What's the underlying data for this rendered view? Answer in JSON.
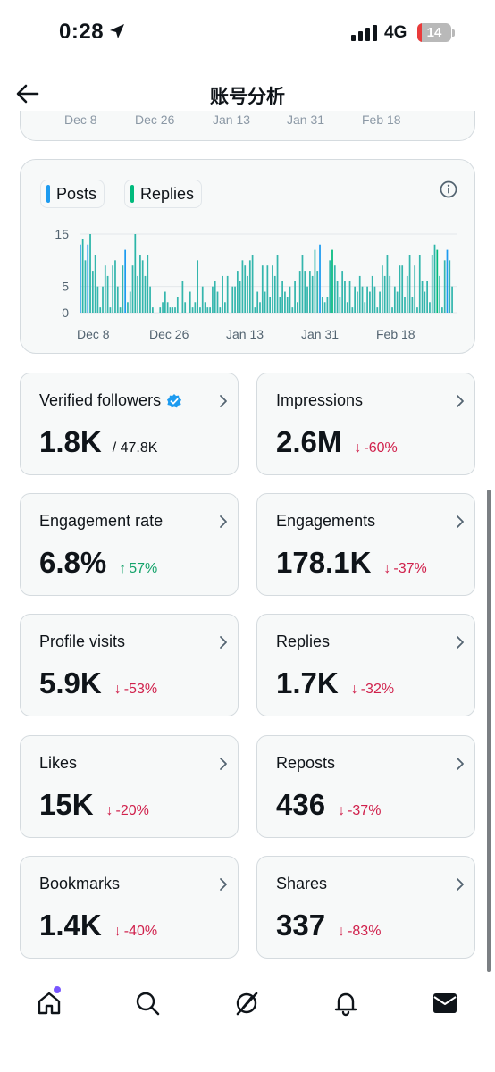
{
  "status_bar": {
    "time": "0:28",
    "network": "4G",
    "battery": "14",
    "battery_level": 0.14,
    "battery_color": "#ea3b3b"
  },
  "header": {
    "title": "账号分析"
  },
  "top_card": {
    "ticks": [
      "Dec 8",
      "Dec 26",
      "Jan 13",
      "Jan 31",
      "Feb 18"
    ]
  },
  "chart": {
    "legend": [
      {
        "label": "Posts",
        "color": "#1d9bf0"
      },
      {
        "label": "Replies",
        "color": "#00ba7c"
      }
    ],
    "y_ticks": [
      "15",
      "5",
      "0"
    ],
    "x_ticks": [
      "Dec 8",
      "Dec 26",
      "Jan 13",
      "Jan 31",
      "Feb 18"
    ]
  },
  "chart_data": {
    "type": "bar",
    "x_tick_labels": [
      "Dec 8",
      "Dec 26",
      "Jan 13",
      "Jan 31",
      "Feb 18"
    ],
    "y_tick_labels": [
      "15",
      "5",
      "0"
    ],
    "ylim": [
      0,
      16
    ],
    "grid": true,
    "legend_position": "top-left",
    "series": [
      {
        "name": "Posts",
        "color": "#1d9bf0"
      },
      {
        "name": "Replies",
        "color": "#00ba7c"
      }
    ],
    "values": [
      13,
      14,
      10,
      13,
      15,
      8,
      11,
      5,
      1,
      5,
      9,
      7,
      1,
      9,
      10,
      5,
      1,
      9,
      12,
      2,
      4,
      9,
      15,
      7,
      11,
      10,
      7,
      11,
      5,
      1,
      0,
      0,
      1,
      2,
      4,
      2,
      1,
      1,
      1,
      3,
      0,
      6,
      2,
      0,
      4,
      1,
      2,
      10,
      1,
      5,
      2,
      1,
      1,
      5,
      6,
      4,
      1,
      7,
      2,
      7,
      0,
      5,
      5,
      8,
      6,
      10,
      9,
      7,
      10,
      11,
      1,
      4,
      2,
      9,
      4,
      9,
      3,
      9,
      7,
      11,
      3,
      6,
      4,
      3,
      5,
      1,
      6,
      2,
      8,
      11,
      8,
      5,
      8,
      7,
      12,
      8,
      13,
      3,
      2,
      3,
      10,
      12,
      9,
      6,
      3,
      8,
      6,
      2,
      6,
      1,
      5,
      4,
      7,
      5,
      2,
      5,
      4,
      7,
      5,
      1,
      4,
      9,
      7,
      11,
      7,
      1,
      5,
      4,
      9,
      9,
      3,
      7,
      11,
      3,
      9,
      1,
      11,
      6,
      4,
      6,
      2,
      11,
      13,
      12,
      7,
      1,
      10,
      12,
      10,
      5
    ],
    "colors": "teal"
  },
  "metrics": [
    {
      "label": "Verified followers",
      "value": "1.8K",
      "sub": "/ 47.8K",
      "delta": "",
      "dir": "none",
      "verified": true
    },
    {
      "label": "Impressions",
      "value": "2.6M",
      "sub": "",
      "delta": "-60%",
      "dir": "down",
      "verified": false
    },
    {
      "label": "Engagement rate",
      "value": "6.8%",
      "sub": "",
      "delta": "57%",
      "dir": "up",
      "verified": false
    },
    {
      "label": "Engagements",
      "value": "178.1K",
      "sub": "",
      "delta": "-37%",
      "dir": "down",
      "verified": false
    },
    {
      "label": "Profile visits",
      "value": "5.9K",
      "sub": "",
      "delta": "-53%",
      "dir": "down",
      "verified": false
    },
    {
      "label": "Replies",
      "value": "1.7K",
      "sub": "",
      "delta": "-32%",
      "dir": "down",
      "verified": false
    },
    {
      "label": "Likes",
      "value": "15K",
      "sub": "",
      "delta": "-20%",
      "dir": "down",
      "verified": false
    },
    {
      "label": "Reposts",
      "value": "436",
      "sub": "",
      "delta": "-37%",
      "dir": "down",
      "verified": false
    },
    {
      "label": "Bookmarks",
      "value": "1.4K",
      "sub": "",
      "delta": "-40%",
      "dir": "down",
      "verified": false
    },
    {
      "label": "Shares",
      "value": "337",
      "sub": "",
      "delta": "-83%",
      "dir": "down",
      "verified": false
    }
  ],
  "arrows": {
    "down": "↓",
    "up": "↑"
  },
  "bottom_nav": {
    "items": [
      "home-icon",
      "search-icon",
      "grok-icon",
      "notifications-icon",
      "messages-icon"
    ],
    "notification_dot_color": "#7856ff"
  }
}
